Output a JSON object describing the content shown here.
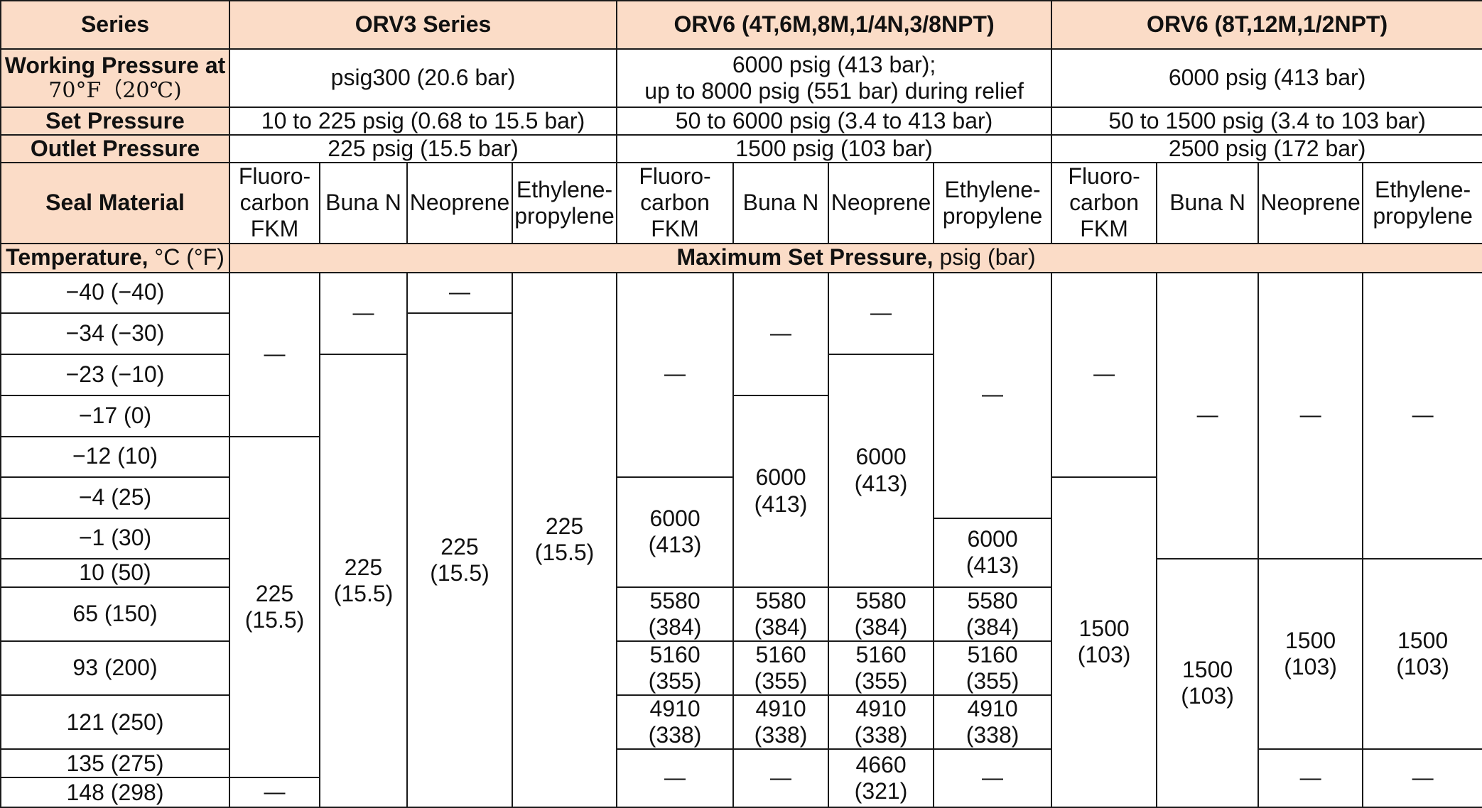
{
  "headers": {
    "series": "Series",
    "orv3": "ORV3 Series",
    "orv6a": "ORV6 (4T,6M,8M,1/4N,3/8NPT)",
    "orv6b": "ORV6 (8T,12M,1/2NPT)"
  },
  "working_pressure": {
    "label_line1": "Working Pressure at",
    "label_line2": "70°F（20℃)",
    "orv3": "psig300 (20.6 bar)",
    "orv6a_line1": "6000 psig (413 bar);",
    "orv6a_line2": "up to 8000 psig (551 bar) during relief",
    "orv6b": "6000 psig (413 bar)"
  },
  "set_pressure": {
    "label": "Set Pressure",
    "orv3": "10 to 225 psig (0.68 to 15.5 bar)",
    "orv6a": "50 to 6000 psig (3.4 to 413 bar)",
    "orv6b": "50 to 1500 psig (3.4 to 103 bar)"
  },
  "outlet_pressure": {
    "label": "Outlet Pressure",
    "orv3": "225 psig (15.5 bar)",
    "orv6a": "1500 psig (103 bar)",
    "orv6b": "2500 psig (172 bar)"
  },
  "seal_material": {
    "label": "Seal Material",
    "fkm": "Fluoro-\ncarbon\nFKM",
    "buna": "Buna N",
    "neoprene": "Neoprene",
    "ep": "Ethylene-\npropylene"
  },
  "temperature_header": {
    "label_bold": "Temperature,",
    "label_unit": " °C (°F)",
    "max_bold": "Maximum Set Pressure,",
    "max_unit": " psig (bar)"
  },
  "temperatures": [
    "−40 (−40)",
    "−34 (−30)",
    "−23 (−10)",
    "−17 (0)",
    "−12 (10)",
    "−4 (25)",
    "−1 (30)",
    "10 (50)",
    "65 (150)",
    "93 (200)",
    "121 (250)",
    "135 (275)",
    "148 (298)"
  ],
  "values": {
    "dash": "—",
    "v225": "225\n(15.5)",
    "v6000": "6000\n(413)",
    "v5580": "5580\n(384)",
    "v5160": "5160\n(355)",
    "v4910": "4910\n(338)",
    "v4660": "4660\n(321)",
    "v1500": "1500\n(103)"
  }
}
